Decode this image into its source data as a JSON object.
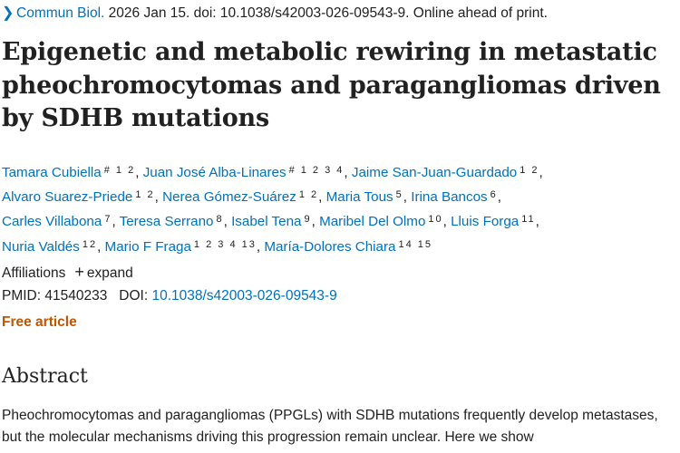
{
  "citation": {
    "journal": "Commun Biol.",
    "details": "2026 Jan 15. doi: 10.1038/s42003-026-09543-9. Online ahead of print."
  },
  "title": "Epigenetic and metabolic rewiring in metastatic pheochromocytomas and paragangliomas driven by SDHB mutations",
  "authors": [
    {
      "name": "Tamara Cubiella",
      "sup": "# 1 2",
      "sep": ","
    },
    {
      "name": "Juan José Alba-Linares",
      "sup": "# 1 2 3 4",
      "sep": ","
    },
    {
      "name": "Jaime San-Juan-Guardado",
      "sup": "1 2",
      "sep": ","
    },
    {
      "name": "Alvaro Suarez-Priede",
      "sup": "1 2",
      "sep": ","
    },
    {
      "name": "Nerea Gómez-Suárez",
      "sup": "1 2",
      "sep": ","
    },
    {
      "name": "Maria Tous",
      "sup": "5",
      "sep": ","
    },
    {
      "name": "Irina Bancos",
      "sup": "6",
      "sep": ","
    },
    {
      "name": "Carles Villabona",
      "sup": "7",
      "sep": ","
    },
    {
      "name": "Teresa Serrano",
      "sup": "8",
      "sep": ","
    },
    {
      "name": "Isabel Tena",
      "sup": "9",
      "sep": ","
    },
    {
      "name": "Maribel Del Olmo",
      "sup": "10",
      "sep": ","
    },
    {
      "name": "Lluis Forga",
      "sup": "11",
      "sep": ","
    },
    {
      "name": "Nuria Valdés",
      "sup": "12",
      "sep": ","
    },
    {
      "name": "Mario F Fraga",
      "sup": "1 2 3 4 13",
      "sep": ","
    },
    {
      "name": "María-Dolores Chiara",
      "sup": "14 15",
      "sep": ""
    }
  ],
  "affiliations": {
    "label": "Affiliations",
    "expand_label": "expand"
  },
  "ids": {
    "pmid_label": "PMID:",
    "pmid": "41540233",
    "doi_label": "DOI:",
    "doi": "10.1038/s42003-026-09543-9"
  },
  "free_article": "Free article",
  "abstract": {
    "heading": "Abstract",
    "text": "Pheochromocytomas and paragangliomas (PPGLs) with SDHB mutations frequently develop metastases, but the molecular mechanisms driving this progression remain unclear. Here we show"
  },
  "colors": {
    "link": "#0071bc",
    "free": "#c05600",
    "text": "#212121"
  },
  "icons": {
    "citation_chevron": "chevron-right-icon",
    "expand": "plus-icon"
  }
}
